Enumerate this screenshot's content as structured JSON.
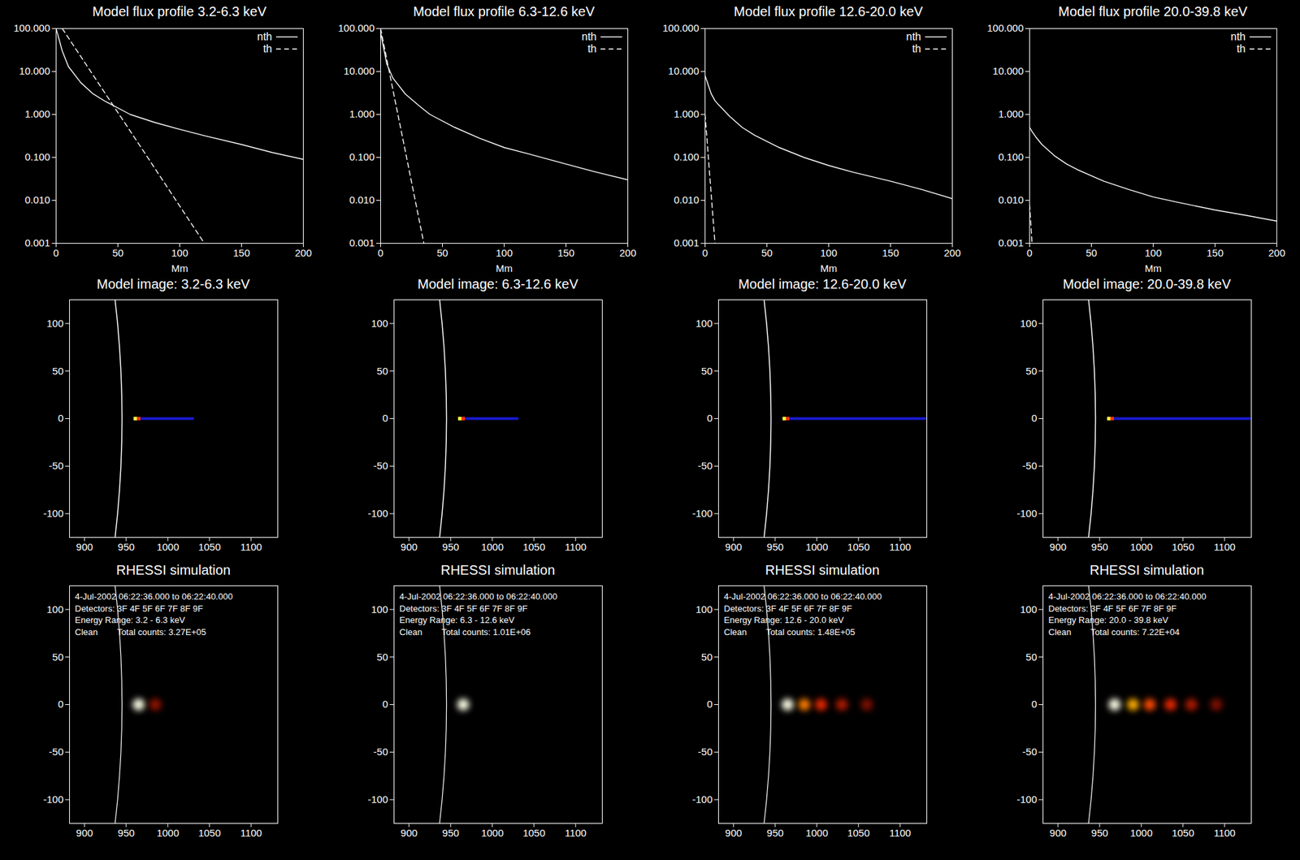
{
  "chart_data": [
    {
      "type": "line",
      "title": "Model flux profile 3.2-6.3 keV",
      "xlabel": "Mm",
      "xlim": [
        0,
        200
      ],
      "xticks": [
        0,
        50,
        100,
        150,
        200
      ],
      "ylim": [
        0.001,
        100
      ],
      "log": "y",
      "legend": "upper right",
      "yticks": [
        0.001,
        {
          "value": 0.01,
          "label": "0.010"
        },
        {
          "value": 0.1,
          "label": "0.100"
        },
        {
          "value": 1,
          "label": "1.000"
        },
        {
          "value": 10,
          "label": "10.000"
        },
        {
          "value": 100,
          "label": "100.000"
        }
      ],
      "x": [
        0,
        5,
        10,
        20,
        30,
        40,
        60,
        80,
        100,
        120,
        150,
        175,
        200
      ],
      "series": [
        {
          "name": "nth",
          "color": "#ffffff",
          "line_style": "solid",
          "values": [
            100,
            30,
            13,
            5.5,
            3,
            2,
            1.0,
            0.65,
            0.45,
            0.32,
            0.2,
            0.13,
            0.09
          ]
        },
        {
          "name": "th",
          "color": "#ffffff",
          "line_style": "dashed",
          "values": [
            null,
            100,
            60.6,
            22.3,
            8.2,
            3.0,
            0.41,
            0.055,
            0.0074,
            0.001,
            null,
            null,
            null
          ]
        }
      ]
    },
    {
      "type": "line",
      "title": "Model flux profile 6.3-12.6 keV",
      "xlabel": "Mm",
      "xlim": [
        0,
        200
      ],
      "xticks": [
        0,
        50,
        100,
        150,
        200
      ],
      "ylim": [
        0.001,
        100
      ],
      "log": "y",
      "legend": "upper right",
      "yticks": [
        0.001,
        {
          "value": 0.01,
          "label": "0.010"
        },
        {
          "value": 0.1,
          "label": "0.100"
        },
        {
          "value": 1,
          "label": "1.000"
        },
        {
          "value": 10,
          "label": "10.000"
        },
        {
          "value": 100,
          "label": "100.000"
        }
      ],
      "x": [
        0,
        5,
        10,
        20,
        30,
        35,
        40,
        60,
        80,
        100,
        120,
        150,
        175,
        200
      ],
      "series": [
        {
          "name": "nth",
          "color": "#ffffff",
          "line_style": "solid",
          "values": [
            80,
            15,
            7,
            3,
            1.7,
            1.3,
            1.0,
            0.5,
            0.28,
            0.17,
            0.12,
            0.07,
            0.045,
            0.03
          ]
        },
        {
          "name": "th",
          "color": "#ffffff",
          "line_style": "dashed",
          "values": [
            100,
            19.3,
            3.7,
            0.14,
            0.0052,
            0.001,
            null,
            null,
            null,
            null,
            null,
            null,
            null,
            null
          ]
        }
      ]
    },
    {
      "type": "line",
      "title": "Model flux profile 12.6-20.0 keV",
      "xlabel": "Mm",
      "xlim": [
        0,
        200
      ],
      "xticks": [
        0,
        50,
        100,
        150,
        200
      ],
      "ylim": [
        0.001,
        100
      ],
      "log": "y",
      "legend": "upper right",
      "yticks": [
        0.001,
        {
          "value": 0.01,
          "label": "0.010"
        },
        {
          "value": 0.1,
          "label": "0.100"
        },
        {
          "value": 1,
          "label": "1.000"
        },
        {
          "value": 10,
          "label": "10.000"
        },
        {
          "value": 100,
          "label": "100.000"
        }
      ],
      "x": [
        0,
        5,
        8,
        10,
        20,
        30,
        40,
        60,
        80,
        100,
        120,
        150,
        175,
        200
      ],
      "series": [
        {
          "name": "nth",
          "color": "#ffffff",
          "line_style": "solid",
          "values": [
            8,
            3,
            2.1,
            1.8,
            0.9,
            0.5,
            0.33,
            0.17,
            0.1,
            0.065,
            0.045,
            0.028,
            0.018,
            0.011
          ]
        },
        {
          "name": "th",
          "color": "#ffffff",
          "line_style": "dashed",
          "values": [
            1.0,
            0.013,
            0.001,
            null,
            null,
            null,
            null,
            null,
            null,
            null,
            null,
            null,
            null,
            null
          ]
        }
      ]
    },
    {
      "type": "line",
      "title": "Model flux profile 20.0-39.8 keV",
      "xlabel": "Mm",
      "xlim": [
        0,
        200
      ],
      "xticks": [
        0,
        50,
        100,
        150,
        200
      ],
      "ylim": [
        0.001,
        100
      ],
      "log": "y",
      "legend": "upper right",
      "yticks": [
        0.001,
        {
          "value": 0.01,
          "label": "0.010"
        },
        {
          "value": 0.1,
          "label": "0.100"
        },
        {
          "value": 1,
          "label": "1.000"
        },
        {
          "value": 10,
          "label": "10.000"
        },
        {
          "value": 100,
          "label": "100.000"
        }
      ],
      "x": [
        0,
        2,
        5,
        10,
        20,
        30,
        40,
        60,
        80,
        100,
        120,
        150,
        175,
        200
      ],
      "series": [
        {
          "name": "nth",
          "color": "#ffffff",
          "line_style": "solid",
          "values": [
            0.5,
            0.4,
            0.3,
            0.2,
            0.11,
            0.07,
            0.05,
            0.028,
            0.018,
            0.012,
            0.009,
            0.006,
            0.0045,
            0.0033
          ]
        },
        {
          "name": "th",
          "color": "#ffffff",
          "line_style": "dashed",
          "values": [
            0.008,
            0.001,
            null,
            null,
            null,
            null,
            null,
            null,
            null,
            null,
            null,
            null,
            null,
            null
          ]
        }
      ]
    },
    {
      "type": "image",
      "title": "Model image: 3.2-6.3 keV",
      "xlim": [
        882,
        1132
      ],
      "xticks": [
        900,
        950,
        1000,
        1050,
        1100
      ],
      "ylim": [
        -125,
        125
      ],
      "yticks": [
        -100,
        -50,
        0,
        50,
        100
      ],
      "limb": {
        "x": [
          936.7,
          939.69,
          942.02,
          943.68,
          944.67,
          945,
          944.67,
          943.68,
          942.02,
          939.69,
          936.7
        ],
        "y": [
          -125,
          -100,
          -75,
          -50,
          -25,
          0,
          25,
          50,
          75,
          100,
          125
        ]
      },
      "footpoint": [
        {
          "x": 961,
          "y": 0,
          "color": "#ffff40"
        },
        {
          "x": 965,
          "y": 0,
          "color": "#ff3000"
        }
      ],
      "loop": {
        "x": [
          968,
          1030
        ],
        "y": 0,
        "color": "#1a1ad0"
      }
    },
    {
      "type": "image",
      "title": "Model image: 6.3-12.6 keV",
      "xlim": [
        882,
        1132
      ],
      "xticks": [
        900,
        950,
        1000,
        1050,
        1100
      ],
      "ylim": [
        -125,
        125
      ],
      "yticks": [
        -100,
        -50,
        0,
        50,
        100
      ],
      "limb": {
        "x": [
          936.7,
          939.69,
          942.02,
          943.68,
          944.67,
          945,
          944.67,
          943.68,
          942.02,
          939.69,
          936.7
        ],
        "y": [
          -125,
          -100,
          -75,
          -50,
          -25,
          0,
          25,
          50,
          75,
          100,
          125
        ]
      },
      "footpoint": [
        {
          "x": 961,
          "y": 0,
          "color": "#ffff40"
        },
        {
          "x": 965,
          "y": 0,
          "color": "#ff3000"
        }
      ],
      "loop": {
        "x": [
          968,
          1030
        ],
        "y": 0,
        "color": "#1a1ad0"
      }
    },
    {
      "type": "image",
      "title": "Model image: 12.6-20.0 keV",
      "xlim": [
        882,
        1132
      ],
      "xticks": [
        900,
        950,
        1000,
        1050,
        1100
      ],
      "ylim": [
        -125,
        125
      ],
      "yticks": [
        -100,
        -50,
        0,
        50,
        100
      ],
      "limb": {
        "x": [
          936.7,
          939.69,
          942.02,
          943.68,
          944.67,
          945,
          944.67,
          943.68,
          942.02,
          939.69,
          936.7
        ],
        "y": [
          -125,
          -100,
          -75,
          -50,
          -25,
          0,
          25,
          50,
          75,
          100,
          125
        ]
      },
      "footpoint": [
        {
          "x": 961,
          "y": 0,
          "color": "#ffff40"
        },
        {
          "x": 965,
          "y": 0,
          "color": "#ff3000"
        }
      ],
      "loop": {
        "x": [
          968,
          1130
        ],
        "y": 0,
        "color": "#1a1ad0"
      }
    },
    {
      "type": "image",
      "title": "Model image: 20.0-39.8 keV",
      "xlim": [
        882,
        1132
      ],
      "xticks": [
        900,
        950,
        1000,
        1050,
        1100
      ],
      "ylim": [
        -125,
        125
      ],
      "yticks": [
        -100,
        -50,
        0,
        50,
        100
      ],
      "limb": {
        "x": [
          936.7,
          939.69,
          942.02,
          943.68,
          944.67,
          945,
          944.67,
          943.68,
          942.02,
          939.69,
          936.7
        ],
        "y": [
          -125,
          -100,
          -75,
          -50,
          -25,
          0,
          25,
          50,
          75,
          100,
          125
        ]
      },
      "footpoint": [
        {
          "x": 961,
          "y": 0,
          "color": "#ffff40"
        },
        {
          "x": 965,
          "y": 0,
          "color": "#ff3000"
        }
      ],
      "loop": {
        "x": [
          968,
          1130
        ],
        "y": 0,
        "color": "#1a1ad0"
      }
    },
    {
      "type": "heatmap",
      "title": "RHESSI simulation",
      "xlim": [
        882,
        1132
      ],
      "xticks": [
        900,
        950,
        1000,
        1050,
        1100
      ],
      "ylim": [
        -125,
        125
      ],
      "yticks": [
        -100,
        -50,
        0,
        50,
        100
      ],
      "annotations": [
        "4-Jul-2002 06:22:36.000 to 06:22:40.000",
        "Detectors: 3F 4F 5F 6F 7F 8F 9F",
        "Energy Range: 3.2 - 6.3 keV",
        "Clean",
        "Total counts: 3.27E+05"
      ],
      "limb": {
        "x": [
          936.7,
          939.69,
          942.02,
          943.68,
          944.67,
          945,
          944.67,
          943.68,
          942.02,
          939.69,
          936.7
        ],
        "y": [
          -125,
          -100,
          -75,
          -50,
          -25,
          0,
          25,
          50,
          75,
          100,
          125
        ]
      },
      "clim": [
        0,
        1
      ],
      "sources": [
        {
          "x": 965,
          "y": 0,
          "intensity": 1
        },
        {
          "x": 985,
          "y": 0,
          "intensity": 0.15
        }
      ]
    },
    {
      "type": "heatmap",
      "title": "RHESSI simulation",
      "xlim": [
        882,
        1132
      ],
      "xticks": [
        900,
        950,
        1000,
        1050,
        1100
      ],
      "ylim": [
        -125,
        125
      ],
      "yticks": [
        -100,
        -50,
        0,
        50,
        100
      ],
      "annotations": [
        "4-Jul-2002 06:22:36.000 to 06:22:40.000",
        "Detectors: 3F 4F 5F 6F 7F 8F 9F",
        "Energy Range: 6.3 - 12.6 keV",
        "Clean",
        "Total counts: 1.01E+06"
      ],
      "limb": {
        "x": [
          936.7,
          939.69,
          942.02,
          943.68,
          944.67,
          945,
          944.67,
          943.68,
          942.02,
          939.69,
          936.7
        ],
        "y": [
          -125,
          -100,
          -75,
          -50,
          -25,
          0,
          25,
          50,
          75,
          100,
          125
        ]
      },
      "clim": [
        0,
        1
      ],
      "sources": [
        {
          "x": 965,
          "y": 0,
          "intensity": 1
        }
      ]
    },
    {
      "type": "heatmap",
      "title": "RHESSI simulation",
      "xlim": [
        882,
        1132
      ],
      "xticks": [
        900,
        950,
        1000,
        1050,
        1100
      ],
      "ylim": [
        -125,
        125
      ],
      "yticks": [
        -100,
        -50,
        0,
        50,
        100
      ],
      "annotations": [
        "4-Jul-2002 06:22:36.000 to 06:22:40.000",
        "Detectors: 3F 4F 5F 6F 7F 8F 9F",
        "Energy Range: 12.6 - 20.0 keV",
        "Clean",
        "Total counts: 1.48E+05"
      ],
      "limb": {
        "x": [
          936.7,
          939.69,
          942.02,
          943.68,
          944.67,
          945,
          944.67,
          943.68,
          942.02,
          939.69,
          936.7
        ],
        "y": [
          -125,
          -100,
          -75,
          -50,
          -25,
          0,
          25,
          50,
          75,
          100,
          125
        ]
      },
      "clim": [
        0,
        1
      ],
      "sources": [
        {
          "x": 965,
          "y": 0,
          "intensity": 1
        },
        {
          "x": 985,
          "y": 0,
          "intensity": 0.5
        },
        {
          "x": 1005,
          "y": 0,
          "intensity": 0.3
        },
        {
          "x": 1030,
          "y": 0,
          "intensity": 0.2
        },
        {
          "x": 1060,
          "y": 0,
          "intensity": 0.12
        }
      ]
    },
    {
      "type": "heatmap",
      "title": "RHESSI simulation",
      "xlim": [
        882,
        1132
      ],
      "xticks": [
        900,
        950,
        1000,
        1050,
        1100
      ],
      "ylim": [
        -125,
        125
      ],
      "yticks": [
        -100,
        -50,
        0,
        50,
        100
      ],
      "annotations": [
        "4-Jul-2002 06:22:36.000 to 06:22:40.000",
        "Detectors: 3F 4F 5F 6F 7F 8F 9F",
        "Energy Range: 20.0 - 39.8 keV",
        "Clean",
        "Total counts: 7.22E+04"
      ],
      "limb": {
        "x": [
          936.7,
          939.69,
          942.02,
          943.68,
          944.67,
          945,
          944.67,
          943.68,
          942.02,
          939.69,
          936.7
        ],
        "y": [
          -125,
          -100,
          -75,
          -50,
          -25,
          0,
          25,
          50,
          75,
          100,
          125
        ]
      },
      "clim": [
        0,
        1
      ],
      "sources": [
        {
          "x": 968,
          "y": 0,
          "intensity": 1
        },
        {
          "x": 990,
          "y": 0,
          "intensity": 0.6
        },
        {
          "x": 1010,
          "y": 0,
          "intensity": 0.4
        },
        {
          "x": 1035,
          "y": 0,
          "intensity": 0.3
        },
        {
          "x": 1060,
          "y": 0,
          "intensity": 0.2
        },
        {
          "x": 1090,
          "y": 0,
          "intensity": 0.12
        }
      ]
    }
  ]
}
